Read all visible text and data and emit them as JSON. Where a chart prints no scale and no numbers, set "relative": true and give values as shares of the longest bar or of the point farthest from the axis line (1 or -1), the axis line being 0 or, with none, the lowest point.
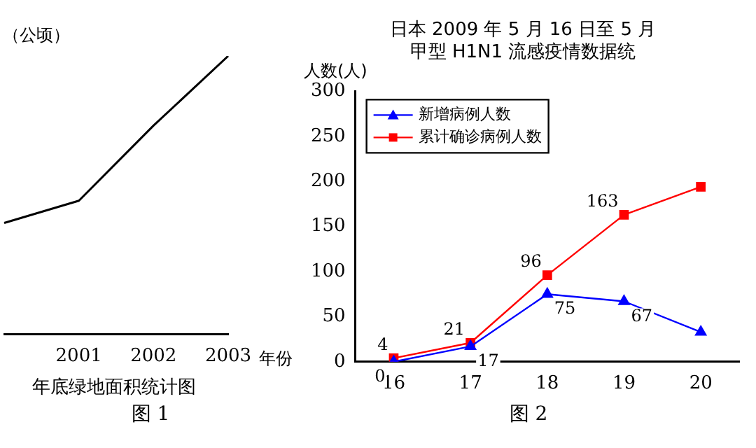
{
  "chart_data": [
    {
      "type": "line",
      "relative": true,
      "title": "年底绿地面积统计图",
      "xlabel": "年份",
      "ylabel": "（公顷）",
      "categories": [
        null,
        "2001",
        "2002",
        "2003"
      ],
      "series": [
        {
          "color": "#000000",
          "values": [
            0.4,
            0.48,
            0.75,
            1
          ]
        }
      ],
      "marker": "none",
      "legend": false,
      "grid": false,
      "annotations": [
        "图 1"
      ]
    },
    {
      "type": "line",
      "title": "日本 2009 年 5 月 16 日至 5 月",
      "subtitle": "甲型 H1N1 流感疫情数据统",
      "ylabel": "人数(人)",
      "categories": [
        "16",
        "17",
        "18",
        "19",
        "20"
      ],
      "series": [
        {
          "name": "新增病例人数",
          "color": "#0000ff",
          "marker": "triangle",
          "values": [
            0,
            17,
            75,
            67,
            33
          ],
          "value_labels": [
            "0",
            "17",
            "75",
            "67",
            null
          ]
        },
        {
          "name": "累计确诊病例人数",
          "color": "#ff0000",
          "marker": "square",
          "values": [
            4,
            21,
            96,
            163,
            194
          ],
          "value_labels": [
            "4",
            "21",
            "96",
            "163",
            null
          ]
        }
      ],
      "ylim": [
        0,
        300
      ],
      "yticks": [
        0,
        50,
        100,
        150,
        200,
        250,
        300
      ],
      "legend": "top left",
      "grid": false,
      "annotations": [
        "图 2"
      ]
    }
  ]
}
